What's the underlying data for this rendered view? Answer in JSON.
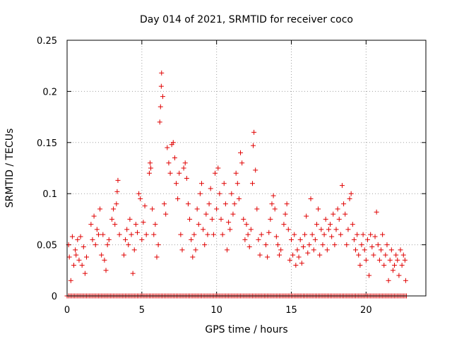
{
  "chart_data": {
    "type": "scatter",
    "title": "Day 014 of 2021, SRMTID for receiver coco",
    "xlabel": "GPS time / hours",
    "ylabel": "SRMTID / TECUs",
    "xlim": [
      0,
      24
    ],
    "ylim": [
      0,
      0.25
    ],
    "xticks": [
      0,
      5,
      10,
      15,
      20
    ],
    "xtick_labels": [
      "0",
      "5",
      "10",
      "15",
      "20"
    ],
    "yticks": [
      0,
      0.05,
      0.1,
      0.15,
      0.2,
      0.25
    ],
    "ytick_labels": [
      "0",
      "0.05",
      "0.1",
      "0.15",
      "0.2",
      "0.25"
    ],
    "grid": true,
    "marker": "+",
    "color": "#e00000",
    "series": [
      {
        "name": "SRMTID",
        "points": [
          [
            0.1,
            0.05
          ],
          [
            0.15,
            0.038
          ],
          [
            0.25,
            0.015
          ],
          [
            0.35,
            0.058
          ],
          [
            0.45,
            0.03
          ],
          [
            0.55,
            0.045
          ],
          [
            0.6,
            0.04
          ],
          [
            0.7,
            0.055
          ],
          [
            0.8,
            0.035
          ],
          [
            0.9,
            0.058
          ],
          [
            1.0,
            0.03
          ],
          [
            1.1,
            0.048
          ],
          [
            1.2,
            0.022
          ],
          [
            1.3,
            0.038
          ],
          [
            1.6,
            0.07
          ],
          [
            1.7,
            0.055
          ],
          [
            1.8,
            0.078
          ],
          [
            1.9,
            0.05
          ],
          [
            2.0,
            0.065
          ],
          [
            2.1,
            0.06
          ],
          [
            2.2,
            0.085
          ],
          [
            2.3,
            0.04
          ],
          [
            2.4,
            0.06
          ],
          [
            2.5,
            0.035
          ],
          [
            2.6,
            0.025
          ],
          [
            2.7,
            0.05
          ],
          [
            2.8,
            0.055
          ],
          [
            3.0,
            0.075
          ],
          [
            3.1,
            0.085
          ],
          [
            3.2,
            0.07
          ],
          [
            3.3,
            0.09
          ],
          [
            3.35,
            0.102
          ],
          [
            3.4,
            0.113
          ],
          [
            3.5,
            0.06
          ],
          [
            3.8,
            0.04
          ],
          [
            3.9,
            0.055
          ],
          [
            4.0,
            0.065
          ],
          [
            4.1,
            0.05
          ],
          [
            4.2,
            0.075
          ],
          [
            4.3,
            0.06
          ],
          [
            4.4,
            0.022
          ],
          [
            4.5,
            0.045
          ],
          [
            4.6,
            0.07
          ],
          [
            4.7,
            0.062
          ],
          [
            4.8,
            0.1
          ],
          [
            4.9,
            0.095
          ],
          [
            5.0,
            0.055
          ],
          [
            5.1,
            0.072
          ],
          [
            5.2,
            0.088
          ],
          [
            5.3,
            0.06
          ],
          [
            5.5,
            0.12
          ],
          [
            5.55,
            0.13
          ],
          [
            5.6,
            0.125
          ],
          [
            5.7,
            0.085
          ],
          [
            5.8,
            0.06
          ],
          [
            5.9,
            0.07
          ],
          [
            6.0,
            0.038
          ],
          [
            6.1,
            0.05
          ],
          [
            6.2,
            0.17
          ],
          [
            6.25,
            0.185
          ],
          [
            6.3,
            0.205
          ],
          [
            6.32,
            0.218
          ],
          [
            6.4,
            0.195
          ],
          [
            6.5,
            0.09
          ],
          [
            6.6,
            0.08
          ],
          [
            6.7,
            0.145
          ],
          [
            6.8,
            0.13
          ],
          [
            6.9,
            0.12
          ],
          [
            7.0,
            0.148
          ],
          [
            7.1,
            0.15
          ],
          [
            7.2,
            0.135
          ],
          [
            7.3,
            0.11
          ],
          [
            7.4,
            0.095
          ],
          [
            7.5,
            0.12
          ],
          [
            7.6,
            0.06
          ],
          [
            7.7,
            0.045
          ],
          [
            7.8,
            0.125
          ],
          [
            7.9,
            0.13
          ],
          [
            8.0,
            0.115
          ],
          [
            8.1,
            0.09
          ],
          [
            8.2,
            0.075
          ],
          [
            8.3,
            0.055
          ],
          [
            8.4,
            0.038
          ],
          [
            8.5,
            0.06
          ],
          [
            8.6,
            0.045
          ],
          [
            8.7,
            0.085
          ],
          [
            8.8,
            0.07
          ],
          [
            8.9,
            0.1
          ],
          [
            9.0,
            0.11
          ],
          [
            9.1,
            0.065
          ],
          [
            9.2,
            0.05
          ],
          [
            9.3,
            0.08
          ],
          [
            9.4,
            0.06
          ],
          [
            9.5,
            0.09
          ],
          [
            9.6,
            0.105
          ],
          [
            9.7,
            0.075
          ],
          [
            9.8,
            0.06
          ],
          [
            9.9,
            0.12
          ],
          [
            10.0,
            0.085
          ],
          [
            10.1,
            0.125
          ],
          [
            10.2,
            0.1
          ],
          [
            10.3,
            0.075
          ],
          [
            10.4,
            0.06
          ],
          [
            10.5,
            0.11
          ],
          [
            10.6,
            0.09
          ],
          [
            10.7,
            0.045
          ],
          [
            10.8,
            0.072
          ],
          [
            10.9,
            0.065
          ],
          [
            11.0,
            0.1
          ],
          [
            11.1,
            0.08
          ],
          [
            11.2,
            0.09
          ],
          [
            11.3,
            0.12
          ],
          [
            11.4,
            0.11
          ],
          [
            11.5,
            0.095
          ],
          [
            11.6,
            0.14
          ],
          [
            11.7,
            0.13
          ],
          [
            11.8,
            0.075
          ],
          [
            11.9,
            0.055
          ],
          [
            12.0,
            0.07
          ],
          [
            12.1,
            0.06
          ],
          [
            12.2,
            0.048
          ],
          [
            12.3,
            0.065
          ],
          [
            12.4,
            0.11
          ],
          [
            12.45,
            0.147
          ],
          [
            12.5,
            0.16
          ],
          [
            12.6,
            0.123
          ],
          [
            12.7,
            0.085
          ],
          [
            12.8,
            0.055
          ],
          [
            12.9,
            0.04
          ],
          [
            13.0,
            0.06
          ],
          [
            13.3,
            0.05
          ],
          [
            13.4,
            0.038
          ],
          [
            13.5,
            0.062
          ],
          [
            13.6,
            0.075
          ],
          [
            13.7,
            0.09
          ],
          [
            13.8,
            0.098
          ],
          [
            13.9,
            0.085
          ],
          [
            14.0,
            0.058
          ],
          [
            14.1,
            0.05
          ],
          [
            14.2,
            0.04
          ],
          [
            14.3,
            0.045
          ],
          [
            14.5,
            0.07
          ],
          [
            14.6,
            0.08
          ],
          [
            14.7,
            0.09
          ],
          [
            14.8,
            0.065
          ],
          [
            14.9,
            0.035
          ],
          [
            15.0,
            0.055
          ],
          [
            15.1,
            0.04
          ],
          [
            15.2,
            0.06
          ],
          [
            15.3,
            0.03
          ],
          [
            15.4,
            0.045
          ],
          [
            15.5,
            0.038
          ],
          [
            15.6,
            0.055
          ],
          [
            15.7,
            0.032
          ],
          [
            15.8,
            0.048
          ],
          [
            15.9,
            0.06
          ],
          [
            16.0,
            0.078
          ],
          [
            16.1,
            0.042
          ],
          [
            16.2,
            0.05
          ],
          [
            16.3,
            0.095
          ],
          [
            16.4,
            0.06
          ],
          [
            16.5,
            0.045
          ],
          [
            16.6,
            0.055
          ],
          [
            16.7,
            0.07
          ],
          [
            16.8,
            0.085
          ],
          [
            16.9,
            0.04
          ],
          [
            17.0,
            0.065
          ],
          [
            17.1,
            0.05
          ],
          [
            17.2,
            0.06
          ],
          [
            17.3,
            0.075
          ],
          [
            17.4,
            0.045
          ],
          [
            17.5,
            0.065
          ],
          [
            17.6,
            0.07
          ],
          [
            17.7,
            0.058
          ],
          [
            17.8,
            0.08
          ],
          [
            17.9,
            0.05
          ],
          [
            18.0,
            0.065
          ],
          [
            18.1,
            0.085
          ],
          [
            18.2,
            0.075
          ],
          [
            18.3,
            0.06
          ],
          [
            18.4,
            0.108
          ],
          [
            18.5,
            0.09
          ],
          [
            18.6,
            0.08
          ],
          [
            18.7,
            0.05
          ],
          [
            18.8,
            0.065
          ],
          [
            18.9,
            0.095
          ],
          [
            19.0,
            0.1
          ],
          [
            19.1,
            0.07
          ],
          [
            19.2,
            0.055
          ],
          [
            19.3,
            0.045
          ],
          [
            19.4,
            0.06
          ],
          [
            19.5,
            0.04
          ],
          [
            19.6,
            0.03
          ],
          [
            19.7,
            0.05
          ],
          [
            19.8,
            0.06
          ],
          [
            19.9,
            0.045
          ],
          [
            20.0,
            0.035
          ],
          [
            20.1,
            0.055
          ],
          [
            20.2,
            0.02
          ],
          [
            20.3,
            0.06
          ],
          [
            20.4,
            0.048
          ],
          [
            20.5,
            0.04
          ],
          [
            20.6,
            0.058
          ],
          [
            20.7,
            0.082
          ],
          [
            20.8,
            0.05
          ],
          [
            20.9,
            0.035
          ],
          [
            21.0,
            0.045
          ],
          [
            21.1,
            0.06
          ],
          [
            21.2,
            0.03
          ],
          [
            21.3,
            0.04
          ],
          [
            21.4,
            0.05
          ],
          [
            21.5,
            0.015
          ],
          [
            21.6,
            0.035
          ],
          [
            21.7,
            0.045
          ],
          [
            21.8,
            0.025
          ],
          [
            21.9,
            0.03
          ],
          [
            22.0,
            0.04
          ],
          [
            22.1,
            0.035
          ],
          [
            22.2,
            0.02
          ],
          [
            22.3,
            0.045
          ],
          [
            22.4,
            0.03
          ],
          [
            22.5,
            0.04
          ],
          [
            22.6,
            0.035
          ],
          [
            22.65,
            0.015
          ]
        ],
        "zero_floor": {
          "x_start": 0.0,
          "x_end": 22.7,
          "step": 0.1,
          "y": 0
        }
      }
    ]
  }
}
